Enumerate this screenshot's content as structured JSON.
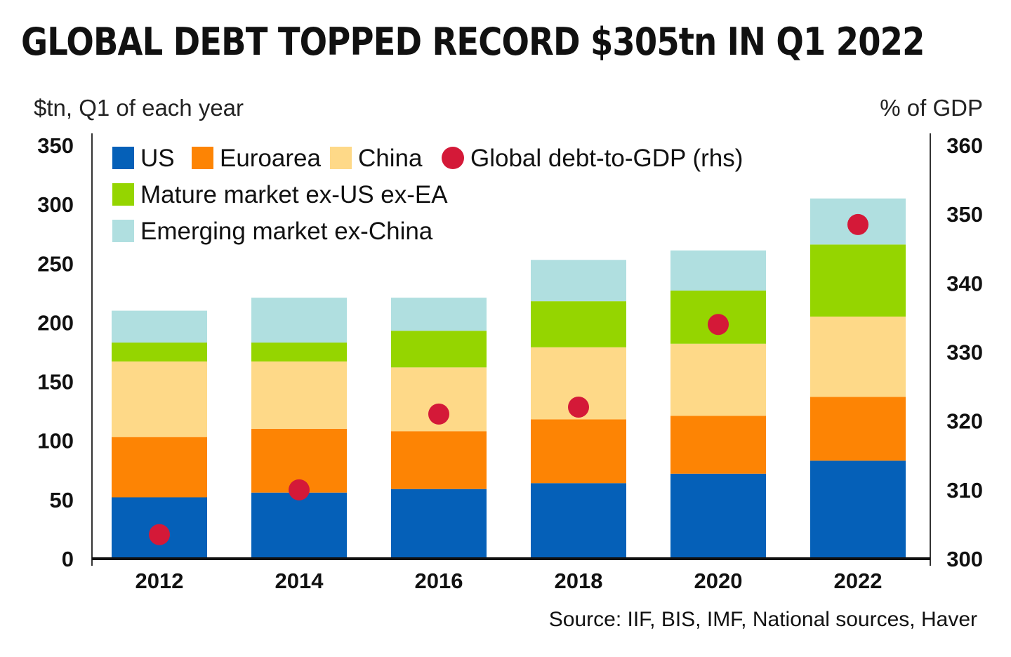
{
  "title": "GLOBAL DEBT TOPPED RECORD $305tn IN Q1 2022",
  "source": "Source: IIF, BIS, IMF, National sources, Haver",
  "chart_data": {
    "type": "bar",
    "stacked": true,
    "categories": [
      "2012",
      "2014",
      "2016",
      "2018",
      "2020",
      "2022"
    ],
    "series": [
      {
        "name": "US",
        "color": "#0560b8",
        "values": [
          52,
          56,
          59,
          64,
          72,
          83
        ]
      },
      {
        "name": "Euroarea",
        "color": "#fd8404",
        "values": [
          51,
          54,
          49,
          54,
          49,
          54
        ]
      },
      {
        "name": "China",
        "color": "#fed988",
        "values": [
          64,
          57,
          54,
          61,
          61,
          68
        ]
      },
      {
        "name": "Mature market ex-US ex-EA",
        "color": "#95d500",
        "values": [
          16,
          16,
          31,
          39,
          45,
          61
        ]
      },
      {
        "name": "Emerging market ex-China",
        "color": "#b0dfe0",
        "values": [
          27,
          38,
          28,
          35,
          34,
          39
        ]
      }
    ],
    "line_series": {
      "name": "Global debt-to-GDP (rhs)",
      "color": "#d41938",
      "values": [
        303.5,
        310,
        321,
        322,
        334,
        348.5
      ]
    },
    "ylabel": "$tn, Q1 of each year",
    "y2label": "% of GDP",
    "ylim": [
      0,
      350
    ],
    "y2lim": [
      300,
      360
    ],
    "yticks": [
      "0",
      "50",
      "100",
      "150",
      "200",
      "250",
      "300",
      "350"
    ],
    "y2ticks": [
      "300",
      "310",
      "320",
      "330",
      "340",
      "350",
      "360"
    ],
    "grid": false,
    "legend_position": "top-left"
  }
}
